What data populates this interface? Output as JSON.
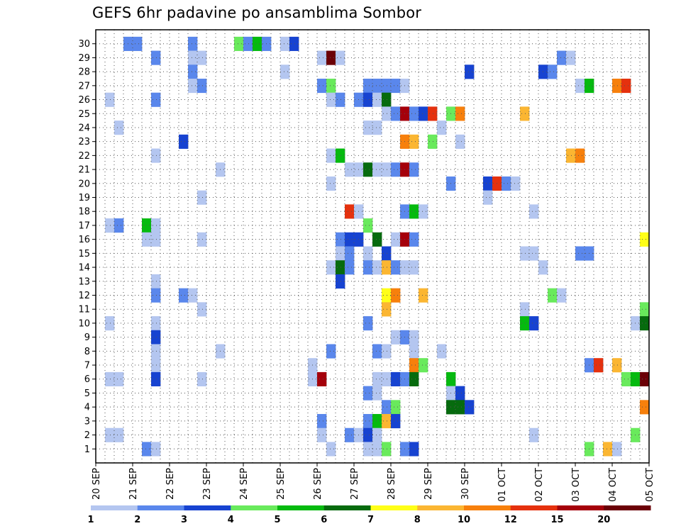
{
  "title": "GEFS 6hr padavine po ansamblima Sombor",
  "chart_data": {
    "type": "heatmap",
    "title": "GEFS 6hr padavine po ansamblima Sombor",
    "x_tick_labels": [
      "20 SEP",
      "21 SEP",
      "22 SEP",
      "23 SEP",
      "24 SEP",
      "25 SEP",
      "26 SEP",
      "27 SEP",
      "28 SEP",
      "29 SEP",
      "30 SEP",
      "01 OCT",
      "02 OCT",
      "03 OCT",
      "04 OCT",
      "05 OCT"
    ],
    "y_tick_labels": [
      "1",
      "2",
      "3",
      "4",
      "5",
      "6",
      "7",
      "8",
      "9",
      "10",
      "11",
      "12",
      "13",
      "14",
      "15",
      "16",
      "17",
      "18",
      "19",
      "20",
      "21",
      "22",
      "23",
      "24",
      "25",
      "26",
      "27",
      "28",
      "29",
      "30"
    ],
    "y_range": [
      0,
      30
    ],
    "time_steps": 60,
    "steps_per_day": 4,
    "grid": "dotted",
    "colorbar": {
      "position": "bottom",
      "tick_labels": [
        "1",
        "2",
        "3",
        "4",
        "5",
        "6",
        "7",
        "8",
        "10",
        "12",
        "15",
        "20"
      ],
      "colors": [
        "#b4c6f0",
        "#5a87ec",
        "#1743d1",
        "#69ea5c",
        "#05ba0f",
        "#066b0e",
        "#ffff18",
        "#fbb632",
        "#f7800c",
        "#e5310e",
        "#a5000b",
        "#6b0007"
      ]
    },
    "cells": [
      [
        3,
        30,
        2
      ],
      [
        4,
        30,
        2
      ],
      [
        10,
        30,
        2
      ],
      [
        15,
        30,
        4
      ],
      [
        16,
        30,
        2
      ],
      [
        17,
        30,
        5
      ],
      [
        18,
        30,
        2
      ],
      [
        20,
        30,
        1
      ],
      [
        21,
        30,
        3
      ],
      [
        6,
        29,
        2
      ],
      [
        10,
        29,
        1
      ],
      [
        11,
        29,
        1
      ],
      [
        24,
        29,
        1
      ],
      [
        25,
        29,
        12
      ],
      [
        26,
        29,
        1
      ],
      [
        50,
        29,
        2
      ],
      [
        51,
        29,
        1
      ],
      [
        10,
        28,
        2
      ],
      [
        20,
        28,
        1
      ],
      [
        40,
        28,
        3
      ],
      [
        48,
        28,
        3
      ],
      [
        49,
        28,
        2
      ],
      [
        10,
        27,
        1
      ],
      [
        11,
        27,
        2
      ],
      [
        24,
        27,
        2
      ],
      [
        25,
        27,
        4
      ],
      [
        29,
        27,
        2
      ],
      [
        30,
        27,
        2
      ],
      [
        31,
        27,
        2
      ],
      [
        32,
        27,
        2
      ],
      [
        33,
        27,
        1
      ],
      [
        52,
        27,
        1
      ],
      [
        53,
        27,
        5
      ],
      [
        56,
        27,
        9
      ],
      [
        57,
        27,
        10
      ],
      [
        1,
        26,
        1
      ],
      [
        6,
        26,
        2
      ],
      [
        25,
        26,
        1
      ],
      [
        26,
        26,
        2
      ],
      [
        28,
        26,
        2
      ],
      [
        29,
        26,
        3
      ],
      [
        30,
        26,
        1
      ],
      [
        31,
        26,
        6
      ],
      [
        31,
        25,
        1
      ],
      [
        32,
        25,
        2
      ],
      [
        33,
        25,
        11
      ],
      [
        34,
        25,
        2
      ],
      [
        35,
        25,
        3
      ],
      [
        36,
        25,
        10
      ],
      [
        38,
        25,
        4
      ],
      [
        39,
        25,
        9
      ],
      [
        46,
        25,
        8
      ],
      [
        2,
        24,
        1
      ],
      [
        29,
        24,
        1
      ],
      [
        30,
        24,
        1
      ],
      [
        37,
        24,
        1
      ],
      [
        9,
        23,
        3
      ],
      [
        33,
        23,
        9
      ],
      [
        34,
        23,
        8
      ],
      [
        36,
        23,
        4
      ],
      [
        39,
        23,
        1
      ],
      [
        6,
        22,
        1
      ],
      [
        25,
        22,
        1
      ],
      [
        26,
        22,
        5
      ],
      [
        51,
        22,
        8
      ],
      [
        52,
        22,
        9
      ],
      [
        13,
        21,
        1
      ],
      [
        27,
        21,
        1
      ],
      [
        28,
        21,
        1
      ],
      [
        29,
        21,
        6
      ],
      [
        30,
        21,
        1
      ],
      [
        31,
        21,
        1
      ],
      [
        32,
        21,
        2
      ],
      [
        33,
        21,
        11
      ],
      [
        34,
        21,
        2
      ],
      [
        25,
        20,
        1
      ],
      [
        38,
        20,
        2
      ],
      [
        42,
        20,
        3
      ],
      [
        43,
        20,
        10
      ],
      [
        44,
        20,
        2
      ],
      [
        45,
        20,
        1
      ],
      [
        11,
        19,
        1
      ],
      [
        42,
        19,
        1
      ],
      [
        27,
        18,
        10
      ],
      [
        28,
        18,
        1
      ],
      [
        33,
        18,
        2
      ],
      [
        34,
        18,
        5
      ],
      [
        35,
        18,
        1
      ],
      [
        47,
        18,
        1
      ],
      [
        1,
        17,
        1
      ],
      [
        2,
        17,
        2
      ],
      [
        5,
        17,
        5
      ],
      [
        6,
        17,
        1
      ],
      [
        29,
        17,
        4
      ],
      [
        5,
        16,
        1
      ],
      [
        6,
        16,
        1
      ],
      [
        11,
        16,
        1
      ],
      [
        26,
        16,
        2
      ],
      [
        27,
        16,
        3
      ],
      [
        28,
        16,
        3
      ],
      [
        30,
        16,
        6
      ],
      [
        32,
        16,
        1
      ],
      [
        33,
        16,
        11
      ],
      [
        34,
        16,
        2
      ],
      [
        59,
        16,
        7
      ],
      [
        26,
        15,
        1
      ],
      [
        27,
        15,
        2
      ],
      [
        29,
        15,
        1
      ],
      [
        31,
        15,
        3
      ],
      [
        46,
        15,
        1
      ],
      [
        47,
        15,
        1
      ],
      [
        52,
        15,
        2
      ],
      [
        53,
        15,
        2
      ],
      [
        25,
        14,
        1
      ],
      [
        26,
        14,
        6
      ],
      [
        27,
        14,
        2
      ],
      [
        29,
        14,
        2
      ],
      [
        30,
        14,
        1
      ],
      [
        31,
        14,
        8
      ],
      [
        32,
        14,
        2
      ],
      [
        33,
        14,
        1
      ],
      [
        34,
        14,
        1
      ],
      [
        48,
        14,
        1
      ],
      [
        6,
        13,
        1
      ],
      [
        26,
        13,
        3
      ],
      [
        35,
        12,
        8
      ],
      [
        6,
        12,
        2
      ],
      [
        9,
        12,
        2
      ],
      [
        10,
        12,
        1
      ],
      [
        31,
        12,
        7
      ],
      [
        32,
        12,
        9
      ],
      [
        49,
        12,
        4
      ],
      [
        50,
        12,
        1
      ],
      [
        11,
        11,
        1
      ],
      [
        31,
        11,
        8
      ],
      [
        46,
        11,
        1
      ],
      [
        59,
        11,
        4
      ],
      [
        1,
        10,
        1
      ],
      [
        6,
        10,
        1
      ],
      [
        29,
        10,
        2
      ],
      [
        46,
        10,
        5
      ],
      [
        47,
        10,
        3
      ],
      [
        58,
        10,
        1
      ],
      [
        59,
        10,
        6
      ],
      [
        6,
        9,
        3
      ],
      [
        32,
        9,
        1
      ],
      [
        33,
        9,
        2
      ],
      [
        34,
        9,
        1
      ],
      [
        6,
        8,
        1
      ],
      [
        13,
        8,
        1
      ],
      [
        25,
        8,
        2
      ],
      [
        30,
        8,
        2
      ],
      [
        31,
        8,
        1
      ],
      [
        34,
        8,
        1
      ],
      [
        37,
        8,
        1
      ],
      [
        6,
        7,
        1
      ],
      [
        23,
        7,
        1
      ],
      [
        34,
        7,
        9
      ],
      [
        35,
        7,
        4
      ],
      [
        53,
        7,
        2
      ],
      [
        54,
        7,
        10
      ],
      [
        56,
        7,
        8
      ],
      [
        1,
        6,
        1
      ],
      [
        2,
        6,
        1
      ],
      [
        6,
        6,
        3
      ],
      [
        11,
        6,
        1
      ],
      [
        23,
        6,
        1
      ],
      [
        24,
        6,
        11
      ],
      [
        30,
        6,
        1
      ],
      [
        31,
        6,
        1
      ],
      [
        32,
        6,
        3
      ],
      [
        33,
        6,
        2
      ],
      [
        34,
        6,
        6
      ],
      [
        38,
        6,
        5
      ],
      [
        57,
        6,
        4
      ],
      [
        58,
        6,
        5
      ],
      [
        59,
        6,
        12
      ],
      [
        29,
        5,
        2
      ],
      [
        30,
        5,
        1
      ],
      [
        38,
        5,
        1
      ],
      [
        39,
        5,
        3
      ],
      [
        31,
        4,
        2
      ],
      [
        32,
        4,
        4
      ],
      [
        38,
        4,
        6
      ],
      [
        39,
        4,
        6
      ],
      [
        40,
        4,
        3
      ],
      [
        59,
        4,
        9
      ],
      [
        24,
        3,
        2
      ],
      [
        29,
        3,
        2
      ],
      [
        30,
        3,
        5
      ],
      [
        31,
        3,
        8
      ],
      [
        32,
        3,
        3
      ],
      [
        1,
        2,
        1
      ],
      [
        2,
        2,
        1
      ],
      [
        24,
        2,
        1
      ],
      [
        27,
        2,
        2
      ],
      [
        28,
        2,
        1
      ],
      [
        29,
        2,
        3
      ],
      [
        30,
        2,
        1
      ],
      [
        47,
        2,
        1
      ],
      [
        58,
        2,
        4
      ],
      [
        5,
        1,
        2
      ],
      [
        6,
        1,
        1
      ],
      [
        25,
        1,
        1
      ],
      [
        29,
        1,
        1
      ],
      [
        30,
        1,
        1
      ],
      [
        31,
        1,
        4
      ],
      [
        33,
        1,
        2
      ],
      [
        34,
        1,
        3
      ],
      [
        53,
        1,
        4
      ],
      [
        55,
        1,
        8
      ],
      [
        56,
        1,
        1
      ]
    ]
  }
}
